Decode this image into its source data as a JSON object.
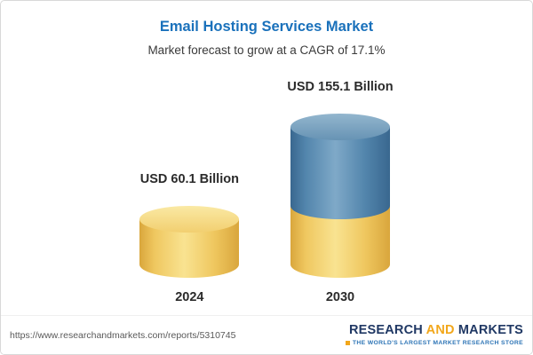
{
  "chart_data": {
    "type": "bar",
    "variant": "cylinder-3d",
    "title": "Email Hosting Services Market",
    "subtitle": "Market forecast to grow at a CAGR of 17.1%",
    "categories": [
      "2024",
      "2030"
    ],
    "values": [
      60.1,
      155.1
    ],
    "value_labels": [
      "USD 60.1 Billion",
      "USD 155.1 Billion"
    ],
    "unit": "USD Billion",
    "legend_position": "none",
    "grid": false,
    "colors": {
      "base_yellow": "#F0C75E",
      "growth_blue": "#4A7FA8"
    }
  },
  "footer": {
    "url": "https://www.researchandmarkets.com/reports/5310745",
    "logo": {
      "word1": "RESEARCH",
      "word2": "AND",
      "word3": "MARKETS",
      "tagline": "THE WORLD'S LARGEST MARKET RESEARCH STORE"
    }
  }
}
